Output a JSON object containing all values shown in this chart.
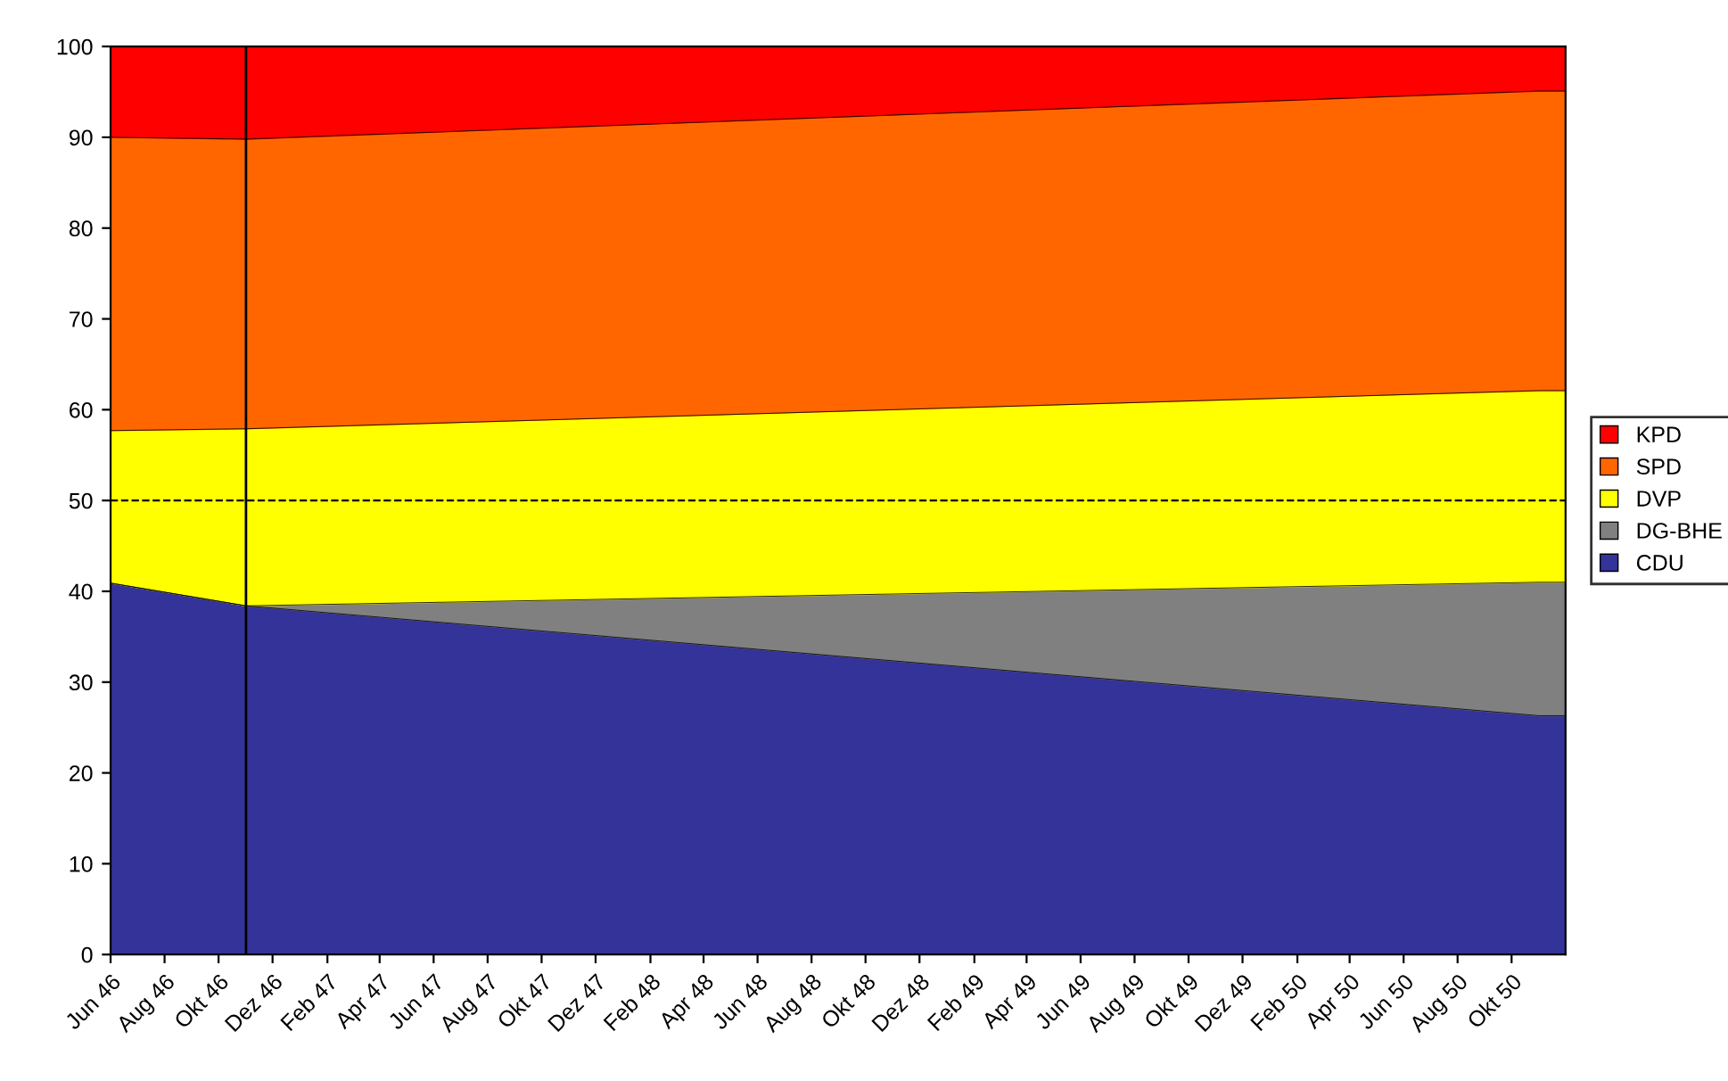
{
  "chart_data": {
    "type": "area",
    "stacked": true,
    "x": [
      "1946-06",
      "1946-11",
      "1950-11",
      "1950-12"
    ],
    "series": [
      {
        "name": "CDU",
        "color": "#333399",
        "values": [
          40.9,
          38.4,
          26.3,
          26.3
        ]
      },
      {
        "name": "DG-BHE",
        "color": "#808080",
        "values": [
          0,
          0,
          14.7,
          14.7
        ]
      },
      {
        "name": "DVP",
        "color": "#ffff00",
        "values": [
          16.8,
          19.5,
          21.1,
          21.1
        ]
      },
      {
        "name": "SPD",
        "color": "#ff6600",
        "values": [
          32.3,
          31.9,
          33.0,
          33.0
        ]
      },
      {
        "name": "KPD",
        "color": "#ff0000",
        "values": [
          10.0,
          10.2,
          4.9,
          4.9
        ]
      }
    ],
    "xlim": [
      "1946-06",
      "1950-12"
    ],
    "xticks": [
      {
        "value": "1946-06",
        "label": "Jun 46"
      },
      {
        "value": "1946-08",
        "label": "Aug 46"
      },
      {
        "value": "1946-10",
        "label": "Okt 46"
      },
      {
        "value": "1946-12",
        "label": "Dez 46"
      },
      {
        "value": "1947-02",
        "label": "Feb 47"
      },
      {
        "value": "1947-04",
        "label": "Apr 47"
      },
      {
        "value": "1947-06",
        "label": "Jun 47"
      },
      {
        "value": "1947-08",
        "label": "Aug 47"
      },
      {
        "value": "1947-10",
        "label": "Okt 47"
      },
      {
        "value": "1947-12",
        "label": "Dez 47"
      },
      {
        "value": "1948-02",
        "label": "Feb 48"
      },
      {
        "value": "1948-04",
        "label": "Apr 48"
      },
      {
        "value": "1948-06",
        "label": "Jun 48"
      },
      {
        "value": "1948-08",
        "label": "Aug 48"
      },
      {
        "value": "1948-10",
        "label": "Okt 48"
      },
      {
        "value": "1948-12",
        "label": "Dez 48"
      },
      {
        "value": "1949-02",
        "label": "Feb 49"
      },
      {
        "value": "1949-04",
        "label": "Apr 49"
      },
      {
        "value": "1949-06",
        "label": "Jun 49"
      },
      {
        "value": "1949-08",
        "label": "Aug 49"
      },
      {
        "value": "1949-10",
        "label": "Okt 49"
      },
      {
        "value": "1949-12",
        "label": "Dez 49"
      },
      {
        "value": "1950-02",
        "label": "Feb 50"
      },
      {
        "value": "1950-04",
        "label": "Apr 50"
      },
      {
        "value": "1950-06",
        "label": "Jun 50"
      },
      {
        "value": "1950-08",
        "label": "Aug 50"
      },
      {
        "value": "1950-10",
        "label": "Okt 50"
      }
    ],
    "ylim": [
      0,
      100
    ],
    "yticks": [
      0,
      10,
      20,
      30,
      40,
      50,
      60,
      70,
      80,
      90,
      100
    ],
    "ref_lines": [
      {
        "axis": "y",
        "value": 50,
        "color": "#000000",
        "line_style": "dashed"
      },
      {
        "axis": "x",
        "value": "1946-11",
        "color": "#000000",
        "line_style": "solid"
      }
    ],
    "legend": "right",
    "grid": false
  }
}
